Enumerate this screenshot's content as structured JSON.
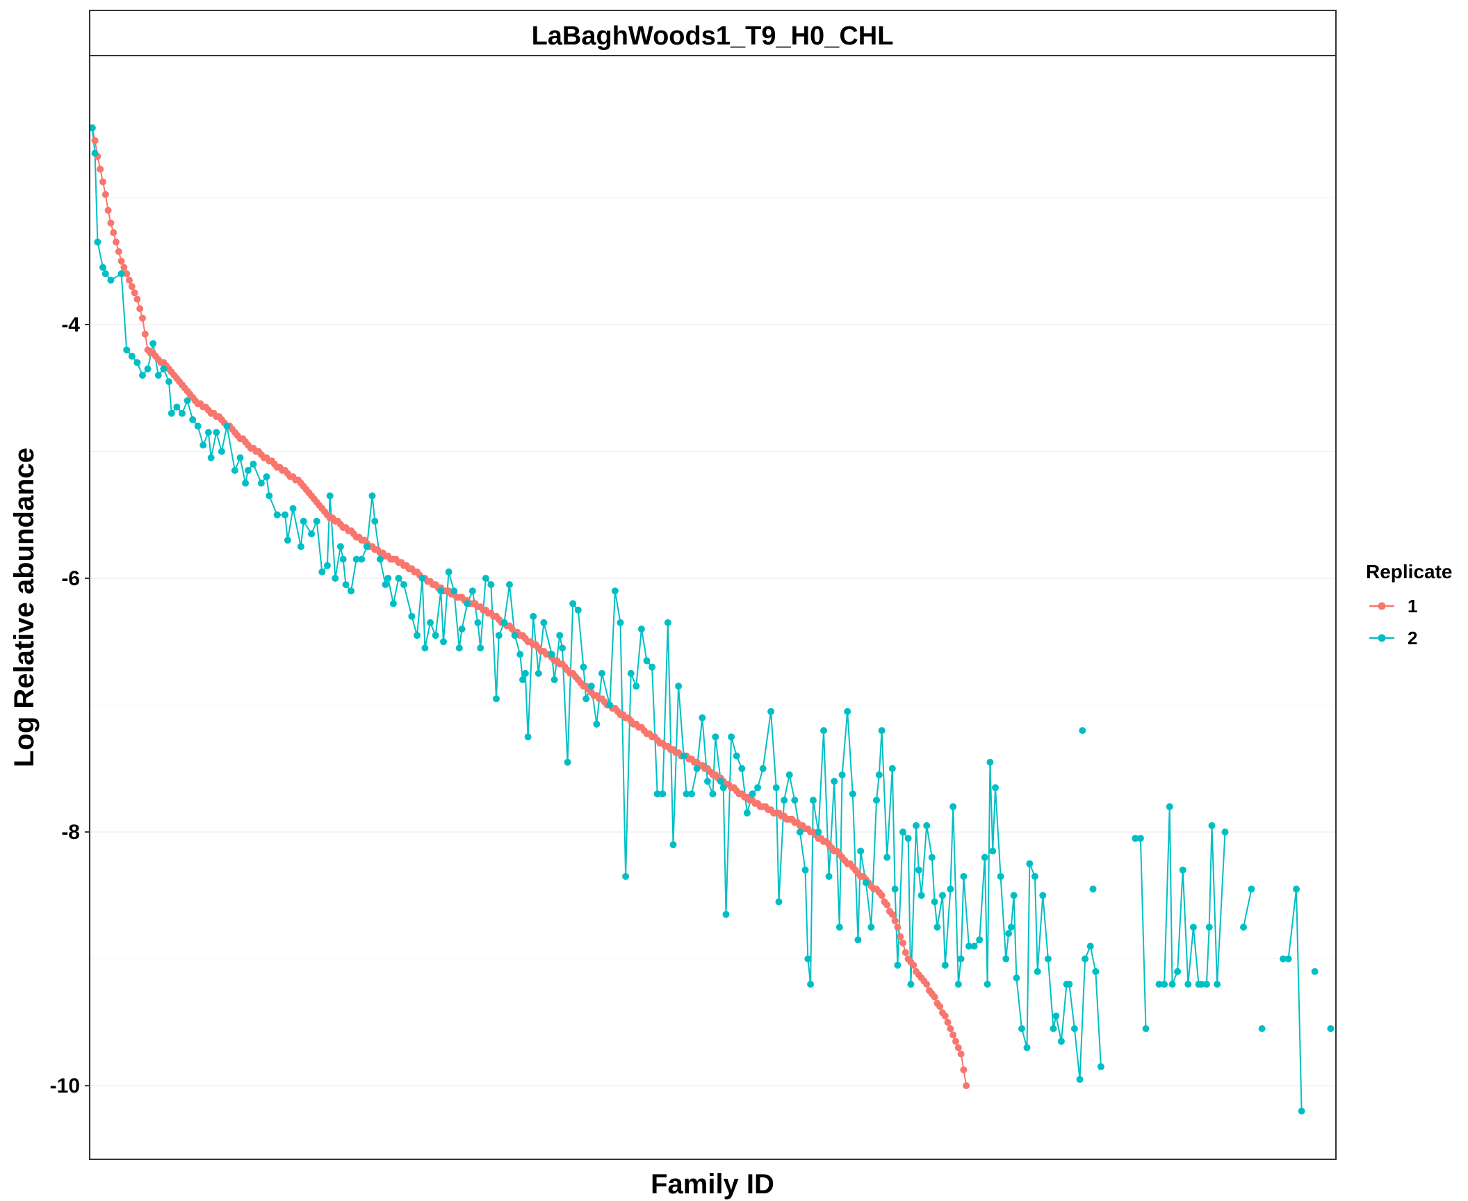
{
  "chart_data": {
    "type": "line",
    "title": "LaBaghWoods1_T9_H0_CHL",
    "xlabel": "Family ID",
    "ylabel": "Log Relative abundance",
    "x_tick_labels": "none",
    "ylim": [
      -10.58,
      -1.88
    ],
    "y_ticks": [
      -4,
      -6,
      -8,
      -10
    ],
    "grid": "horizontal major and minor, light grey",
    "legend": {
      "title": "Replicate",
      "placement": "right"
    },
    "series": [
      {
        "name": "1",
        "color": "#F8766D",
        "anchors": [
          [
            1,
            -2.45
          ],
          [
            8,
            -3.2
          ],
          [
            12,
            -3.5
          ],
          [
            18,
            -3.8
          ],
          [
            20,
            -3.95
          ],
          [
            22,
            -4.2
          ],
          [
            30,
            -4.35
          ],
          [
            40,
            -4.6
          ],
          [
            50,
            -4.75
          ],
          [
            60,
            -4.95
          ],
          [
            70,
            -5.1
          ],
          [
            80,
            -5.25
          ],
          [
            90,
            -5.5
          ],
          [
            100,
            -5.65
          ],
          [
            110,
            -5.8
          ],
          [
            120,
            -5.9
          ],
          [
            130,
            -6.05
          ],
          [
            140,
            -6.15
          ],
          [
            150,
            -6.25
          ],
          [
            160,
            -6.4
          ],
          [
            170,
            -6.55
          ],
          [
            180,
            -6.7
          ],
          [
            190,
            -6.9
          ],
          [
            200,
            -7.05
          ],
          [
            210,
            -7.2
          ],
          [
            220,
            -7.35
          ],
          [
            230,
            -7.45
          ],
          [
            240,
            -7.6
          ],
          [
            250,
            -7.75
          ],
          [
            260,
            -7.85
          ],
          [
            270,
            -7.95
          ],
          [
            280,
            -8.1
          ],
          [
            290,
            -8.3
          ],
          [
            300,
            -8.5
          ],
          [
            305,
            -8.7
          ],
          [
            310,
            -9.0
          ],
          [
            315,
            -9.15
          ],
          [
            320,
            -9.3
          ],
          [
            325,
            -9.5
          ],
          [
            330,
            -9.75
          ],
          [
            332,
            -10.0
          ]
        ]
      },
      {
        "name": "2",
        "color": "#00BFC4",
        "points": [
          [
            1,
            -2.45
          ],
          [
            2,
            -2.65
          ],
          [
            3,
            -3.35
          ],
          [
            5,
            -3.55
          ],
          [
            6,
            -3.6
          ],
          [
            8,
            -3.65
          ],
          [
            12,
            -3.6
          ],
          [
            14,
            -4.2
          ],
          [
            16,
            -4.25
          ],
          [
            18,
            -4.3
          ],
          [
            20,
            -4.4
          ],
          [
            22,
            -4.35
          ],
          [
            24,
            -4.15
          ],
          [
            26,
            -4.4
          ],
          [
            28,
            -4.35
          ],
          [
            30,
            -4.45
          ],
          [
            31,
            -4.7
          ],
          [
            33,
            -4.65
          ],
          [
            35,
            -4.7
          ],
          [
            37,
            -4.6
          ],
          [
            39,
            -4.75
          ],
          [
            41,
            -4.8
          ],
          [
            43,
            -4.95
          ],
          [
            45,
            -4.85
          ],
          [
            46,
            -5.05
          ],
          [
            48,
            -4.85
          ],
          [
            50,
            -5.0
          ],
          [
            52,
            -4.8
          ],
          [
            55,
            -5.15
          ],
          [
            57,
            -5.05
          ],
          [
            59,
            -5.25
          ],
          [
            60,
            -5.15
          ],
          [
            62,
            -5.1
          ],
          [
            65,
            -5.25
          ],
          [
            67,
            -5.2
          ],
          [
            68,
            -5.35
          ],
          [
            71,
            -5.5
          ],
          [
            74,
            -5.5
          ],
          [
            75,
            -5.7
          ],
          [
            77,
            -5.45
          ],
          [
            80,
            -5.75
          ],
          [
            81,
            -5.55
          ],
          [
            84,
            -5.65
          ],
          [
            86,
            -5.55
          ],
          [
            88,
            -5.95
          ],
          [
            90,
            -5.9
          ],
          [
            91,
            -5.35
          ],
          [
            93,
            -6.0
          ],
          [
            95,
            -5.75
          ],
          [
            96,
            -5.85
          ],
          [
            97,
            -6.05
          ],
          [
            99,
            -6.1
          ],
          [
            101,
            -5.85
          ],
          [
            103,
            -5.85
          ],
          [
            105,
            -5.75
          ],
          [
            107,
            -5.35
          ],
          [
            108,
            -5.55
          ],
          [
            110,
            -5.85
          ],
          [
            112,
            -6.05
          ],
          [
            113,
            -6.0
          ],
          [
            115,
            -6.2
          ],
          [
            117,
            -6.0
          ],
          [
            119,
            -6.05
          ],
          [
            122,
            -6.3
          ],
          [
            124,
            -6.45
          ],
          [
            126,
            -6.0
          ],
          [
            127,
            -6.55
          ],
          [
            129,
            -6.35
          ],
          [
            131,
            -6.45
          ],
          [
            133,
            -6.1
          ],
          [
            134,
            -6.5
          ],
          [
            136,
            -5.95
          ],
          [
            138,
            -6.1
          ],
          [
            140,
            -6.55
          ],
          [
            141,
            -6.4
          ],
          [
            143,
            -6.2
          ],
          [
            145,
            -6.1
          ],
          [
            147,
            -6.35
          ],
          [
            148,
            -6.55
          ],
          [
            150,
            -6.0
          ],
          [
            152,
            -6.05
          ],
          [
            154,
            -6.95
          ],
          [
            155,
            -6.45
          ],
          [
            157,
            -6.35
          ],
          [
            159,
            -6.05
          ],
          [
            161,
            -6.45
          ],
          [
            163,
            -6.6
          ],
          [
            164,
            -6.8
          ],
          [
            165,
            -6.75
          ],
          [
            166,
            -7.25
          ],
          [
            168,
            -6.3
          ],
          [
            170,
            -6.75
          ],
          [
            172,
            -6.35
          ],
          [
            175,
            -6.6
          ],
          [
            176,
            -6.8
          ],
          [
            178,
            -6.45
          ],
          [
            179,
            -6.55
          ],
          [
            181,
            -7.45
          ],
          [
            183,
            -6.2
          ],
          [
            185,
            -6.25
          ],
          [
            187,
            -6.7
          ],
          [
            188,
            -6.95
          ],
          [
            190,
            -6.85
          ],
          [
            192,
            -7.15
          ],
          [
            194,
            -6.75
          ],
          [
            197,
            -7.0
          ],
          [
            199,
            -6.1
          ],
          [
            201,
            -6.35
          ],
          [
            203,
            -8.35
          ],
          [
            205,
            -6.75
          ],
          [
            207,
            -6.85
          ],
          [
            209,
            -6.4
          ],
          [
            211,
            -6.65
          ],
          [
            213,
            -6.7
          ],
          [
            215,
            -7.7
          ],
          [
            217,
            -7.7
          ],
          [
            219,
            -6.35
          ],
          [
            221,
            -8.1
          ],
          [
            223,
            -6.85
          ],
          [
            225,
            -7.4
          ],
          [
            226,
            -7.7
          ],
          [
            228,
            -7.7
          ],
          [
            230,
            -7.5
          ],
          [
            232,
            -7.1
          ],
          [
            234,
            -7.6
          ],
          [
            236,
            -7.7
          ],
          [
            237,
            -7.25
          ],
          [
            239,
            -7.6
          ],
          [
            240,
            -7.65
          ],
          [
            241,
            -8.65
          ],
          [
            243,
            -7.25
          ],
          [
            245,
            -7.4
          ],
          [
            247,
            -7.5
          ],
          [
            249,
            -7.85
          ],
          [
            251,
            -7.7
          ],
          [
            253,
            -7.65
          ],
          [
            255,
            -7.5
          ],
          [
            258,
            -7.05
          ],
          [
            260,
            -7.65
          ],
          [
            261,
            -8.55
          ],
          [
            263,
            -7.75
          ],
          [
            265,
            -7.55
          ],
          [
            267,
            -7.75
          ],
          [
            269,
            -8.0
          ],
          [
            271,
            -8.3
          ],
          [
            272,
            -9.0
          ],
          [
            273,
            -9.2
          ],
          [
            274,
            -7.75
          ],
          [
            276,
            -8.0
          ],
          [
            278,
            -7.2
          ],
          [
            280,
            -8.35
          ],
          [
            282,
            -7.6
          ],
          [
            284,
            -8.75
          ],
          [
            285,
            -7.55
          ],
          [
            287,
            -7.05
          ],
          [
            289,
            -7.7
          ],
          [
            291,
            -8.85
          ],
          [
            292,
            -8.15
          ],
          [
            294,
            -8.4
          ],
          [
            296,
            -8.75
          ],
          [
            298,
            -7.75
          ],
          [
            299,
            -7.55
          ],
          [
            300,
            -7.2
          ],
          [
            302,
            -8.2
          ],
          [
            304,
            -7.5
          ],
          [
            305,
            -8.45
          ],
          [
            306,
            -9.05
          ],
          [
            308,
            -8.0
          ],
          [
            310,
            -8.05
          ],
          [
            311,
            -9.2
          ],
          [
            313,
            -7.95
          ],
          [
            314,
            -8.3
          ],
          [
            315,
            -8.5
          ],
          [
            317,
            -7.95
          ],
          [
            319,
            -8.2
          ],
          [
            320,
            -8.55
          ],
          [
            321,
            -8.75
          ],
          [
            323,
            -8.5
          ],
          [
            324,
            -9.05
          ],
          [
            326,
            -8.45
          ],
          [
            327,
            -7.8
          ],
          [
            329,
            -9.2
          ],
          [
            330,
            -9.0
          ],
          [
            331,
            -8.35
          ],
          [
            333,
            -8.9
          ],
          [
            335,
            -8.9
          ],
          [
            337,
            -8.85
          ],
          [
            339,
            -8.2
          ],
          [
            340,
            -9.2
          ],
          [
            341,
            -7.45
          ],
          [
            342,
            -8.15
          ],
          [
            343,
            -7.65
          ],
          [
            345,
            -8.35
          ],
          [
            347,
            -9.0
          ],
          [
            348,
            -8.8
          ],
          [
            349,
            -8.75
          ],
          [
            350,
            -8.5
          ],
          [
            351,
            -9.15
          ],
          [
            353,
            -9.55
          ],
          [
            355,
            -9.7
          ],
          [
            356,
            -8.25
          ],
          [
            358,
            -8.35
          ],
          [
            359,
            -9.1
          ],
          [
            361,
            -8.5
          ],
          [
            363,
            -9.0
          ],
          [
            365,
            -9.55
          ],
          [
            366,
            -9.45
          ],
          [
            368,
            -9.65
          ],
          [
            370,
            -9.2
          ],
          [
            371,
            -9.2
          ],
          [
            373,
            -9.55
          ],
          [
            375,
            -9.95
          ],
          [
            377,
            -9.0
          ],
          [
            379,
            -8.9
          ],
          [
            381,
            -9.1
          ],
          [
            383,
            -9.85
          ]
        ],
        "extra_points": [
          [
            396,
            -8.05
          ],
          [
            398,
            -8.05
          ],
          [
            400,
            -9.55
          ],
          [
            405,
            -9.2
          ],
          [
            407,
            -9.2
          ],
          [
            409,
            -7.8
          ],
          [
            410,
            -9.2
          ],
          [
            412,
            -9.1
          ],
          [
            414,
            -8.3
          ],
          [
            416,
            -9.2
          ],
          [
            418,
            -8.75
          ],
          [
            420,
            -9.2
          ],
          [
            421,
            -9.2
          ],
          [
            423,
            -9.2
          ],
          [
            424,
            -8.75
          ],
          [
            425,
            -7.95
          ],
          [
            427,
            -9.2
          ],
          [
            430,
            -8.0
          ],
          [
            437,
            -8.75
          ],
          [
            440,
            -8.45
          ],
          [
            444,
            -9.55
          ],
          [
            452,
            -9.0
          ],
          [
            454,
            -9.0
          ],
          [
            457,
            -8.45
          ],
          [
            459,
            -10.2
          ],
          [
            464,
            -9.1
          ],
          [
            470,
            -9.55
          ],
          [
            380,
            -8.45
          ],
          [
            376,
            -7.2
          ]
        ]
      }
    ]
  }
}
